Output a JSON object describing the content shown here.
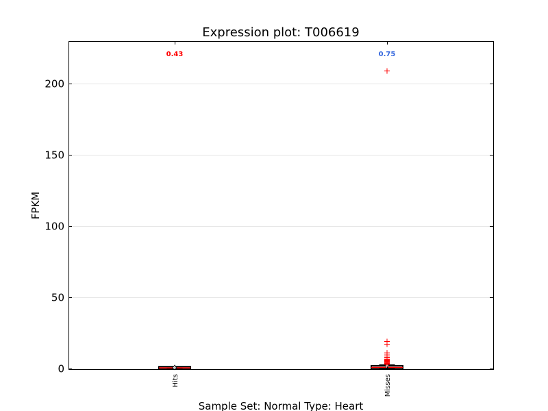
{
  "chart_data": {
    "type": "box",
    "title": "Expression plot: T006619",
    "xlabel": "Sample Set: Normal Type: Heart",
    "ylabel": "FPKM",
    "ylim": [
      -1,
      230
    ],
    "yticks": [
      0,
      50,
      100,
      150,
      200
    ],
    "grid": true,
    "categories": [
      "Hits",
      "Misses"
    ],
    "boxes": [
      {
        "category": "Hits",
        "label": "0.43",
        "label_color": "#ff0000",
        "q1": 0.1,
        "median": 0.43,
        "q3": 0.8,
        "whisker_low": 0.0,
        "whisker_high": 1.2,
        "mean": 0.45,
        "outliers": []
      },
      {
        "category": "Misses",
        "label": "0.75",
        "label_color": "#3366dd",
        "q1": 0.3,
        "median": 0.75,
        "q3": 1.4,
        "whisker_low": 0.0,
        "whisker_high": 2.5,
        "mean": 1.6,
        "outliers": [
          209,
          19,
          17,
          11,
          9.5,
          8,
          7.5,
          6.5,
          6,
          5.5,
          5,
          4.5,
          4,
          3.6,
          3.2,
          2.9
        ]
      }
    ],
    "colors": {
      "box": "#000000",
      "median": "#ff0000",
      "outlier": "#ff0000",
      "mean": "#ffffff"
    }
  }
}
